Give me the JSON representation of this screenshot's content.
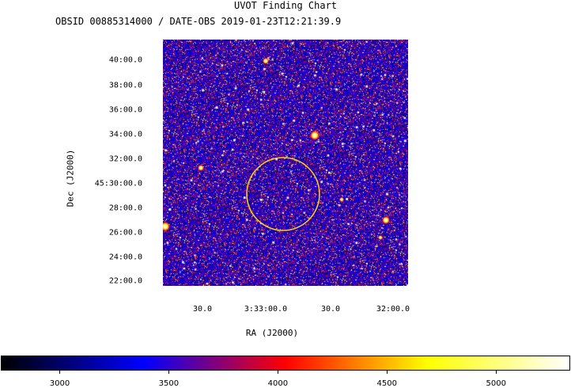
{
  "chart_data": {
    "type": "heatmap",
    "title": "UVOT Finding Chart",
    "subtitle": "OBSID 00885314000 / DATE-OBS 2019-01-23T12:21:39.9",
    "xlabel": "RA (J2000)",
    "ylabel": "Dec (J2000)",
    "x_ticks": [
      "30.0",
      "3:33:00.0",
      "30.0",
      "32:00.0"
    ],
    "y_ticks": [
      "40:00.0",
      "38:00.0",
      "36:00.0",
      "34:00.0",
      "32:00.0",
      "45:30:00.0",
      "28:00.0",
      "26:00.0",
      "24:00.0",
      "22:00.0"
    ],
    "colorbar": {
      "ticks": [
        3000,
        3500,
        4000,
        4500,
        5000
      ],
      "range": [
        2730,
        5340
      ],
      "colormap": [
        "#000000",
        "#0000ff",
        "#ff0000",
        "#ffff00",
        "#ffffff"
      ]
    },
    "circle_color": "#ffd700"
  }
}
